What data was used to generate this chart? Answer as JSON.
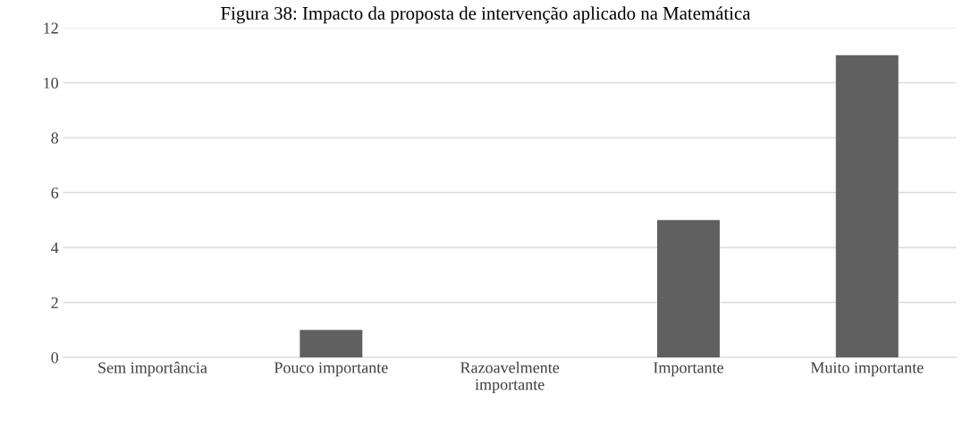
{
  "chart_data": {
    "type": "bar",
    "title": "Figura 38: Impacto da proposta de intervenção aplicado na Matemática",
    "categories": [
      "Sem importância",
      "Pouco importante",
      "Razoavelmente\nimportante",
      "Importante",
      "Muito importante"
    ],
    "values": [
      0,
      1,
      0,
      5,
      11
    ],
    "color": "#606060",
    "ylim": [
      0,
      12
    ],
    "yticks": [
      0,
      2,
      4,
      6,
      8,
      10,
      12
    ],
    "grid": "y"
  }
}
